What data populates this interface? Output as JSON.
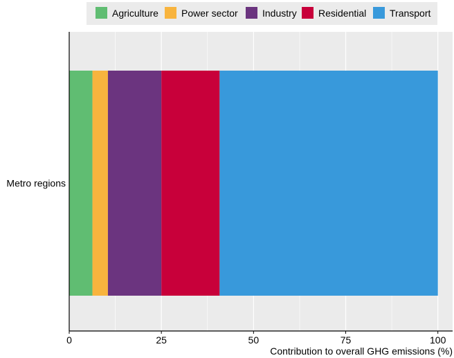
{
  "chart_data": {
    "type": "bar",
    "orientation": "horizontal",
    "stacked": true,
    "categories": [
      "Metro regions"
    ],
    "series": [
      {
        "name": "Agriculture",
        "values": [
          6.3
        ],
        "color": "#60bd72"
      },
      {
        "name": "Power sector",
        "values": [
          4.2
        ],
        "color": "#f8b43e"
      },
      {
        "name": "Industry",
        "values": [
          14.5
        ],
        "color": "#6b347f"
      },
      {
        "name": "Residential",
        "values": [
          15.8
        ],
        "color": "#c8003a"
      },
      {
        "name": "Transport",
        "values": [
          59.2
        ],
        "color": "#3899db"
      }
    ],
    "xlabel": "Contribution to overall GHG emissions (%)",
    "ylabel": "",
    "title": "",
    "xlim": [
      0,
      104
    ],
    "xticks": [
      0,
      25,
      50,
      75,
      100
    ],
    "xtick_labels": [
      "0",
      "25",
      "50",
      "75",
      "100"
    ],
    "grid": true,
    "legend_position": "top",
    "panel_color": "#ebebeb"
  }
}
